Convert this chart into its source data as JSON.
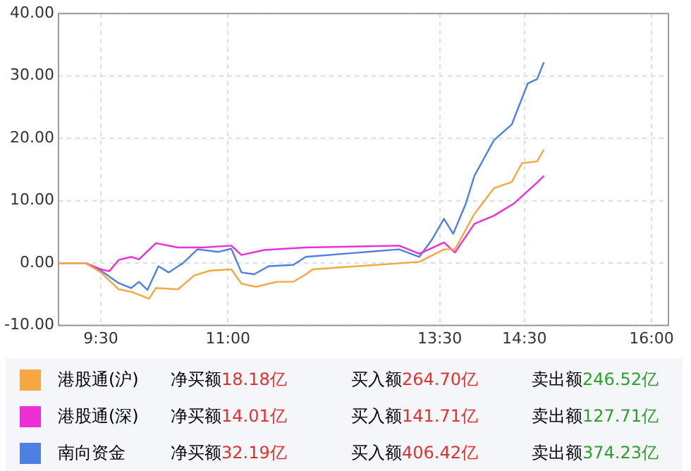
{
  "chart_data": {
    "type": "line",
    "xlim": [
      9,
      16.2
    ],
    "xticks": [
      {
        "value": 9.5,
        "label": "9:30"
      },
      {
        "value": 11,
        "label": "11:00"
      },
      {
        "value": 13.5,
        "label": "13:30"
      },
      {
        "value": 14.5,
        "label": "14:30"
      },
      {
        "value": 16,
        "label": "16:00"
      }
    ],
    "ylim": [
      -10,
      40
    ],
    "yticks": [
      {
        "value": -10,
        "label": "-10.00"
      },
      {
        "value": 0,
        "label": "0.00"
      },
      {
        "value": 10,
        "label": "10.00"
      },
      {
        "value": 20,
        "label": "20.00"
      },
      {
        "value": 30,
        "label": "30.00"
      },
      {
        "value": 40,
        "label": "40.00"
      }
    ],
    "grid": true,
    "legend": "bottom",
    "marker": "none",
    "line_style": "solid",
    "series": [
      {
        "name": "港股通(沪)",
        "color": "#f5a742",
        "x": [
          9,
          9.32,
          9.5,
          9.71,
          9.86,
          10.07,
          10.15,
          10.41,
          10.6,
          10.79,
          11.04,
          11.16,
          11.33,
          11.58,
          11.77,
          11.92,
          12.0,
          13.26,
          13.55,
          13.68,
          13.91,
          14.14,
          14.35,
          14.47,
          14.65,
          14.73
        ],
        "values": [
          0,
          0,
          -1.5,
          -4.2,
          -4.6,
          -5.7,
          -4,
          -4.2,
          -2,
          -1.2,
          -1,
          -3.3,
          -3.8,
          -3,
          -3,
          -1.8,
          -1,
          0.2,
          2.2,
          2.2,
          7.9,
          12,
          13,
          16,
          16.3,
          18.2
        ]
      },
      {
        "name": "港股通(深)",
        "color": "#ee2fd6",
        "x": [
          9,
          9.32,
          9.5,
          9.6,
          9.71,
          9.86,
          9.95,
          10.15,
          10.41,
          10.7,
          11.04,
          11.16,
          11.43,
          11.92,
          13.02,
          13.26,
          13.55,
          13.68,
          13.91,
          14.14,
          14.38,
          14.65,
          14.73
        ],
        "values": [
          0,
          0,
          -1,
          -1.3,
          0.5,
          1,
          0.6,
          3.2,
          2.5,
          2.5,
          2.8,
          1.3,
          2.1,
          2.5,
          2.8,
          1.5,
          3.3,
          1.7,
          6.3,
          7.6,
          9.6,
          12.9,
          14.0
        ]
      },
      {
        "name": "南向资金",
        "color": "#4e80e4",
        "x": [
          9,
          9.32,
          9.5,
          9.71,
          9.86,
          9.95,
          10.05,
          10.18,
          10.3,
          10.47,
          10.64,
          10.89,
          11.04,
          11.16,
          11.31,
          11.48,
          11.77,
          11.92,
          13.02,
          13.26,
          13.41,
          13.55,
          13.66,
          13.81,
          13.91,
          14.14,
          14.35,
          14.54,
          14.65,
          14.73
        ],
        "values": [
          0,
          0,
          -1.2,
          -3.2,
          -4,
          -3,
          -4.3,
          -0.5,
          -1.5,
          0,
          2.2,
          1.8,
          2.3,
          -1.5,
          -1.8,
          -0.5,
          -0.3,
          1,
          2.2,
          1.0,
          3.8,
          7.1,
          4.7,
          9.6,
          14,
          19.7,
          22.2,
          28.8,
          29.5,
          32.2
        ]
      }
    ],
    "annotations": [
      "净买额18.18亿",
      "买入额264.70亿",
      "卖出额246.52亿",
      "净买额14.01亿",
      "买入额141.71亿",
      "卖出额127.71亿",
      "净买额32.19亿",
      "买入额406.42亿",
      "卖出额374.23亿"
    ]
  }
}
